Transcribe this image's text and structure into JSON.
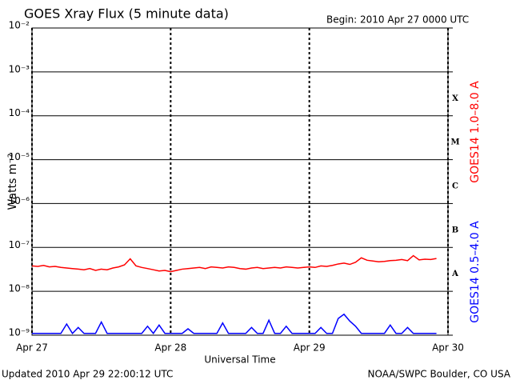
{
  "chart_data": {
    "type": "line",
    "title": "GOES Xray Flux (5 minute data)",
    "subtitle": "Begin:  2010 Apr 27 0000 UTC",
    "x_label": "Universal Time",
    "y_label": "Watts m⁻²",
    "footer_left": "Updated 2010 Apr 29 22:00:12 UTC",
    "footer_right": "NOAA/SWPC Boulder, CO USA",
    "log_scale": true,
    "grid": true,
    "xlim": [
      0,
      72
    ],
    "xticks": [
      {
        "value": 0,
        "label": "Apr 27"
      },
      {
        "value": 24,
        "label": "Apr 28"
      },
      {
        "value": 48,
        "label": "Apr 29"
      },
      {
        "value": 72,
        "label": "Apr 30"
      }
    ],
    "ylim": [
      1e-09,
      0.01
    ],
    "yticks": [
      {
        "value": 1e-09,
        "label": "10⁻⁹"
      },
      {
        "value": 1e-08,
        "label": "10⁻⁸"
      },
      {
        "value": 1e-07,
        "label": "10⁻⁷"
      },
      {
        "value": 1e-06,
        "label": "10⁻⁶"
      },
      {
        "value": 1e-05,
        "label": "10⁻⁵"
      },
      {
        "value": 0.0001,
        "label": "10⁻⁴"
      },
      {
        "value": 0.001,
        "label": "10⁻³"
      },
      {
        "value": 0.01,
        "label": "10⁻²"
      }
    ],
    "flare_classes": [
      {
        "label": "X",
        "value": 0.0001
      },
      {
        "label": "M",
        "value": 1e-05
      },
      {
        "label": "C",
        "value": 1e-06
      },
      {
        "label": "B",
        "value": 1e-07
      },
      {
        "label": "A",
        "value": 1e-08
      }
    ],
    "x": [
      0,
      1,
      2,
      3,
      4,
      5,
      6,
      7,
      8,
      9,
      10,
      11,
      12,
      13,
      14,
      15,
      16,
      17,
      18,
      19,
      20,
      21,
      22,
      23,
      24,
      25,
      26,
      27,
      28,
      29,
      30,
      31,
      32,
      33,
      34,
      35,
      36,
      37,
      38,
      39,
      40,
      41,
      42,
      43,
      44,
      45,
      46,
      47,
      48,
      49,
      50,
      51,
      52,
      53,
      54,
      55,
      56,
      57,
      58,
      59,
      60,
      61,
      62,
      63,
      64,
      65,
      66,
      67,
      68,
      69,
      70
    ],
    "series": [
      {
        "name": "GOES14 1.0–8.0 A",
        "color": "#ff0000",
        "values": [
          3.8e-08,
          3.7e-08,
          3.9e-08,
          3.6e-08,
          3.7e-08,
          3.5e-08,
          3.4e-08,
          3.3e-08,
          3.2e-08,
          3.1e-08,
          3.3e-08,
          3e-08,
          3.2e-08,
          3.1e-08,
          3.4e-08,
          3.6e-08,
          4e-08,
          5.5e-08,
          3.8e-08,
          3.5e-08,
          3.3e-08,
          3.1e-08,
          2.9e-08,
          3e-08,
          2.8e-08,
          3e-08,
          3.2e-08,
          3.3e-08,
          3.4e-08,
          3.5e-08,
          3.3e-08,
          3.6e-08,
          3.5e-08,
          3.4e-08,
          3.6e-08,
          3.5e-08,
          3.3e-08,
          3.2e-08,
          3.4e-08,
          3.5e-08,
          3.3e-08,
          3.4e-08,
          3.5e-08,
          3.4e-08,
          3.6e-08,
          3.5e-08,
          3.4e-08,
          3.5e-08,
          3.6e-08,
          3.5e-08,
          3.8e-08,
          3.7e-08,
          3.9e-08,
          4.2e-08,
          4.4e-08,
          4.1e-08,
          4.6e-08,
          5.8e-08,
          5.1e-08,
          4.9e-08,
          4.7e-08,
          4.8e-08,
          5e-08,
          5.1e-08,
          5.3e-08,
          5e-08,
          6.5e-08,
          5.2e-08,
          5.4e-08,
          5.3e-08,
          5.6e-08
        ]
      },
      {
        "name": "GOES14 0.5–4.0 A",
        "color": "#0000ff",
        "values": [
          1.1e-09,
          1.1e-09,
          1.1e-09,
          1.1e-09,
          1.1e-09,
          1.1e-09,
          1.8e-09,
          1.1e-09,
          1.5e-09,
          1.1e-09,
          1.1e-09,
          1.1e-09,
          2e-09,
          1.1e-09,
          1.1e-09,
          1.1e-09,
          1.1e-09,
          1.1e-09,
          1.1e-09,
          1.1e-09,
          1.6e-09,
          1.1e-09,
          1.7e-09,
          1.1e-09,
          1.1e-09,
          1.1e-09,
          1.1e-09,
          1.4e-09,
          1.1e-09,
          1.1e-09,
          1.1e-09,
          1.1e-09,
          1.1e-09,
          1.9e-09,
          1.1e-09,
          1.1e-09,
          1.1e-09,
          1.1e-09,
          1.5e-09,
          1.1e-09,
          1.1e-09,
          2.2e-09,
          1.1e-09,
          1.1e-09,
          1.6e-09,
          1.1e-09,
          1.1e-09,
          1.1e-09,
          1.1e-09,
          1.1e-09,
          1.5e-09,
          1.1e-09,
          1.1e-09,
          2.4e-09,
          3e-09,
          2.1e-09,
          1.6e-09,
          1.1e-09,
          1.1e-09,
          1.1e-09,
          1.1e-09,
          1.1e-09,
          1.7e-09,
          1.1e-09,
          1.1e-09,
          1.5e-09,
          1.1e-09,
          1.1e-09,
          1.1e-09,
          1.1e-09,
          1.1e-09
        ]
      }
    ]
  }
}
